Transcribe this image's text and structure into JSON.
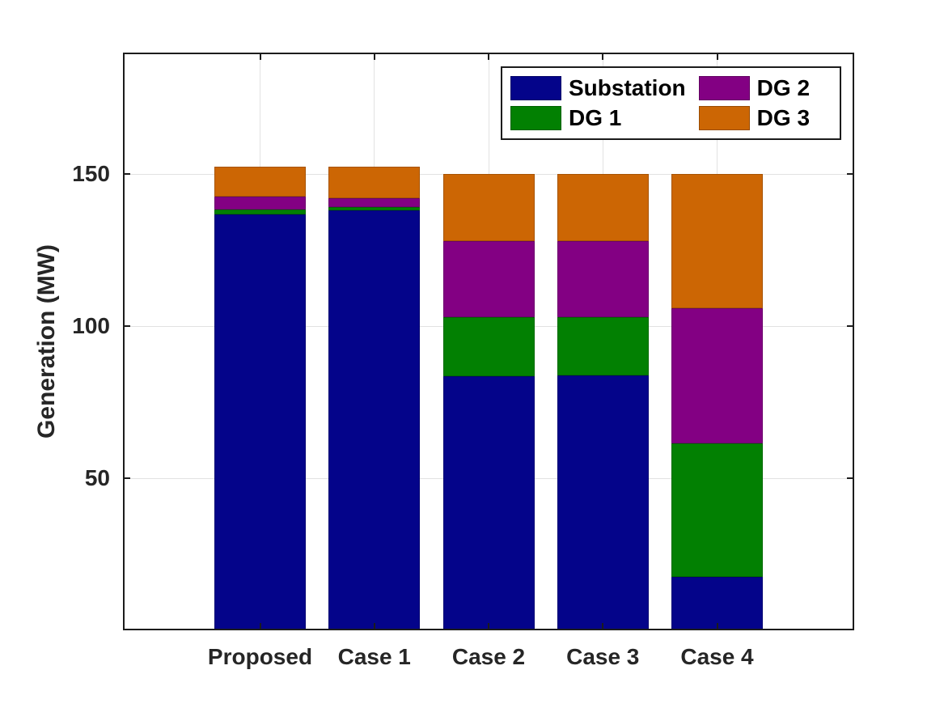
{
  "chart_data": {
    "type": "bar",
    "stacked": true,
    "orientation": "vertical",
    "title": "",
    "xlabel": "",
    "ylabel": "Generation (MW)",
    "categories": [
      "Proposed",
      "Case 1",
      "Case 2",
      "Case 3",
      "Case 4"
    ],
    "series": [
      {
        "name": "Substation",
        "color": "#04048a",
        "values": [
          136.8,
          138.1,
          83.5,
          83.8,
          17.5
        ]
      },
      {
        "name": "DG 1",
        "color": "#028002",
        "values": [
          1.6,
          1.1,
          19.4,
          19.3,
          44.0
        ]
      },
      {
        "name": "DG 2",
        "color": "#830083",
        "values": [
          4.2,
          2.9,
          25.2,
          25.0,
          44.3
        ]
      },
      {
        "name": "DG 3",
        "color": "#cc6604",
        "values": [
          9.9,
          10.3,
          22.0,
          22.0,
          44.3
        ]
      }
    ],
    "totals": [
      152.5,
      152.4,
      150.1,
      150.1,
      150.1
    ],
    "yticks": [
      50,
      100,
      150
    ],
    "ylim": [
      0,
      190
    ],
    "grid": true,
    "grid_color": "#e2e2e2",
    "axis_color": "#1c1c1c",
    "tick_label_color": "#262626",
    "legend": {
      "position": "top-right",
      "columns": 2,
      "entries": [
        "Substation",
        "DG 1",
        "DG 2",
        "DG 3"
      ]
    }
  }
}
